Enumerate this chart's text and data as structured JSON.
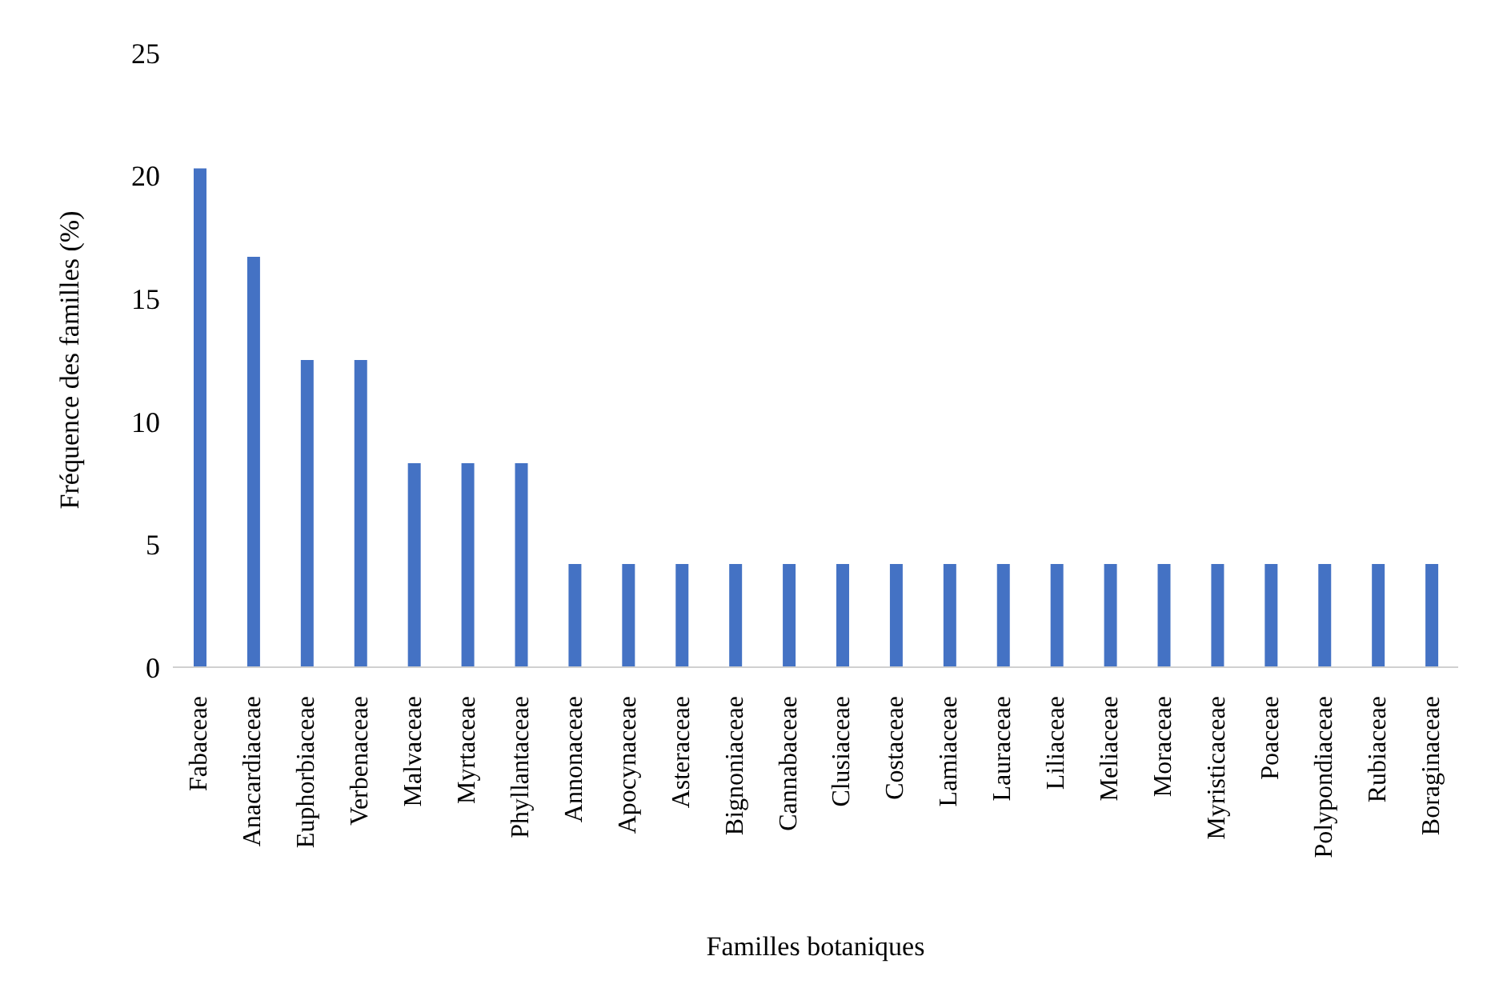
{
  "chart_data": {
    "type": "bar",
    "xlabel": "Familles botaniques",
    "ylabel": "Fréquence des familles  (%)",
    "categories": [
      "Fabaceae",
      "Anacardiaceae",
      "Euphorbiaceae",
      "Verbenaceae",
      "Malvaceae",
      "Myrtaceae",
      "Phyllantaceae",
      "Annonaceae",
      "Apocynaceae",
      "Asteraceae",
      "Bignoniaceae",
      "Cannabaceae",
      "Clusiaceae",
      "Costaceae",
      "Lamiaceae",
      "Lauraceae",
      "Liliaceae",
      "Meliaceae",
      "Moraceae",
      "Myristicaceae",
      "Poaceae",
      "Polypondiaceae",
      "Rubiaceae",
      "Boraginaceae"
    ],
    "values": [
      20.3,
      16.7,
      12.5,
      12.5,
      8.3,
      8.3,
      8.3,
      4.2,
      4.2,
      4.2,
      4.2,
      4.2,
      4.2,
      4.2,
      4.2,
      4.2,
      4.2,
      4.2,
      4.2,
      4.2,
      4.2,
      4.2,
      4.2,
      4.2
    ],
    "color": "#4472c4",
    "ylim": [
      0,
      25
    ],
    "yticks": [
      0,
      5,
      10,
      15,
      20,
      25
    ],
    "grid": false,
    "legend": false
  }
}
